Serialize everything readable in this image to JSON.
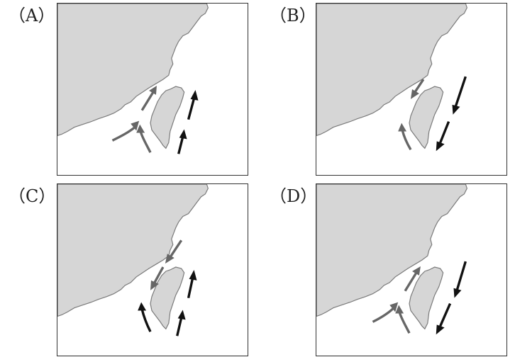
{
  "panels": [
    {
      "id": "a",
      "label": "（A）",
      "west_current": "northward",
      "east_current": "northward",
      "strait_current": "northward"
    },
    {
      "id": "b",
      "label": "（B）",
      "west_current": "southward",
      "east_current": "southward",
      "strait_current": "northward"
    },
    {
      "id": "c",
      "label": "（C）",
      "west_current": "southward",
      "east_current": "northward",
      "strait_current": "southward"
    },
    {
      "id": "d",
      "label": "（D）",
      "west_current": "northward",
      "east_current": "southward",
      "strait_current": "northward"
    }
  ],
  "colors": {
    "land": "#d6d6d6",
    "coast": "#7a7a7a",
    "current_gray": "#666666",
    "current_black": "#111111",
    "frame": "#333333"
  }
}
